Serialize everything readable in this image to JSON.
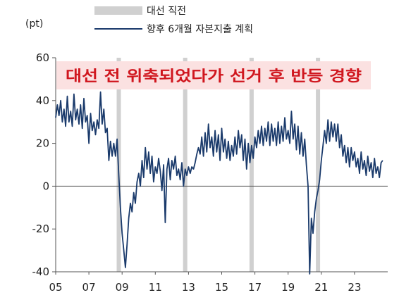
{
  "chart_data": {
    "type": "line",
    "unit_label": "(pt)",
    "legend": {
      "band_label": "대선 직전",
      "line_label": "향후 6개월 자본지출 계획"
    },
    "annotation": "대선 전 위축되었다가 선거 후 반등 경향",
    "x_range": [
      2005.0,
      2025.0
    ],
    "ylim": [
      -40,
      60
    ],
    "yticks": [
      60,
      40,
      20,
      0,
      -20,
      -40
    ],
    "xticks": [
      {
        "label": "05",
        "x": 2005
      },
      {
        "label": "07",
        "x": 2007
      },
      {
        "label": "09",
        "x": 2009
      },
      {
        "label": "11",
        "x": 2011
      },
      {
        "label": "13",
        "x": 2013
      },
      {
        "label": "15",
        "x": 2015
      },
      {
        "label": "17",
        "x": 2017
      },
      {
        "label": "19",
        "x": 2019
      },
      {
        "label": "21",
        "x": 2021
      },
      {
        "label": "23",
        "x": 2023
      }
    ],
    "election_bands": [
      2008.8,
      2012.8,
      2016.8,
      2020.8
    ],
    "series": [
      {
        "color": "#1a3a6b",
        "points": [
          [
            2005.0,
            32
          ],
          [
            2005.1,
            38
          ],
          [
            2005.2,
            33
          ],
          [
            2005.3,
            40
          ],
          [
            2005.4,
            30
          ],
          [
            2005.5,
            36
          ],
          [
            2005.6,
            28
          ],
          [
            2005.7,
            42
          ],
          [
            2005.8,
            30
          ],
          [
            2005.9,
            35
          ],
          [
            2006.0,
            28
          ],
          [
            2006.1,
            43
          ],
          [
            2006.2,
            31
          ],
          [
            2006.3,
            36
          ],
          [
            2006.4,
            29
          ],
          [
            2006.5,
            38
          ],
          [
            2006.6,
            27
          ],
          [
            2006.7,
            41
          ],
          [
            2006.8,
            30
          ],
          [
            2006.9,
            33
          ],
          [
            2007.0,
            20
          ],
          [
            2007.1,
            34
          ],
          [
            2007.2,
            26
          ],
          [
            2007.3,
            30
          ],
          [
            2007.4,
            24
          ],
          [
            2007.5,
            31
          ],
          [
            2007.6,
            27
          ],
          [
            2007.7,
            44
          ],
          [
            2007.8,
            29
          ],
          [
            2007.9,
            36
          ],
          [
            2008.0,
            25
          ],
          [
            2008.1,
            27
          ],
          [
            2008.2,
            12
          ],
          [
            2008.3,
            21
          ],
          [
            2008.4,
            14
          ],
          [
            2008.5,
            20
          ],
          [
            2008.6,
            14
          ],
          [
            2008.7,
            22
          ],
          [
            2008.8,
            5
          ],
          [
            2008.9,
            -10
          ],
          [
            2009.0,
            -22
          ],
          [
            2009.1,
            -30
          ],
          [
            2009.2,
            -38
          ],
          [
            2009.3,
            -27
          ],
          [
            2009.4,
            -15
          ],
          [
            2009.5,
            -8
          ],
          [
            2009.6,
            -12
          ],
          [
            2009.7,
            -3
          ],
          [
            2009.8,
            -8
          ],
          [
            2009.9,
            2
          ],
          [
            2010.0,
            6
          ],
          [
            2010.1,
            0
          ],
          [
            2010.2,
            12
          ],
          [
            2010.3,
            4
          ],
          [
            2010.4,
            18
          ],
          [
            2010.5,
            8
          ],
          [
            2010.6,
            16
          ],
          [
            2010.7,
            6
          ],
          [
            2010.8,
            14
          ],
          [
            2010.9,
            2
          ],
          [
            2011.0,
            9
          ],
          [
            2011.1,
            6
          ],
          [
            2011.2,
            13
          ],
          [
            2011.3,
            7
          ],
          [
            2011.4,
            -2
          ],
          [
            2011.5,
            10
          ],
          [
            2011.6,
            -17
          ],
          [
            2011.7,
            8
          ],
          [
            2011.8,
            13
          ],
          [
            2011.9,
            3
          ],
          [
            2012.0,
            12
          ],
          [
            2012.1,
            8
          ],
          [
            2012.2,
            14
          ],
          [
            2012.3,
            5
          ],
          [
            2012.4,
            8
          ],
          [
            2012.5,
            3
          ],
          [
            2012.6,
            11
          ],
          [
            2012.7,
            0
          ],
          [
            2012.8,
            8
          ],
          [
            2012.9,
            5
          ],
          [
            2013.0,
            9
          ],
          [
            2013.1,
            6
          ],
          [
            2013.2,
            9
          ],
          [
            2013.3,
            8
          ],
          [
            2013.4,
            11
          ],
          [
            2013.5,
            15
          ],
          [
            2013.6,
            18
          ],
          [
            2013.7,
            15
          ],
          [
            2013.8,
            23
          ],
          [
            2013.9,
            14
          ],
          [
            2014.0,
            25
          ],
          [
            2014.1,
            16
          ],
          [
            2014.2,
            29
          ],
          [
            2014.3,
            18
          ],
          [
            2014.4,
            23
          ],
          [
            2014.5,
            14
          ],
          [
            2014.6,
            26
          ],
          [
            2014.7,
            16
          ],
          [
            2014.8,
            24
          ],
          [
            2014.9,
            12
          ],
          [
            2015.0,
            27
          ],
          [
            2015.1,
            16
          ],
          [
            2015.2,
            22
          ],
          [
            2015.3,
            13
          ],
          [
            2015.4,
            21
          ],
          [
            2015.5,
            12
          ],
          [
            2015.6,
            19
          ],
          [
            2015.7,
            14
          ],
          [
            2015.8,
            23
          ],
          [
            2015.9,
            15
          ],
          [
            2016.0,
            26
          ],
          [
            2016.1,
            18
          ],
          [
            2016.2,
            24
          ],
          [
            2016.3,
            12
          ],
          [
            2016.4,
            22
          ],
          [
            2016.5,
            8
          ],
          [
            2016.6,
            20
          ],
          [
            2016.7,
            11
          ],
          [
            2016.8,
            19
          ],
          [
            2016.9,
            13
          ],
          [
            2017.0,
            23
          ],
          [
            2017.1,
            18
          ],
          [
            2017.2,
            26
          ],
          [
            2017.3,
            20
          ],
          [
            2017.4,
            28
          ],
          [
            2017.5,
            19
          ],
          [
            2017.6,
            27
          ],
          [
            2017.7,
            21
          ],
          [
            2017.8,
            30
          ],
          [
            2017.9,
            19
          ],
          [
            2018.0,
            29
          ],
          [
            2018.1,
            21
          ],
          [
            2018.2,
            27
          ],
          [
            2018.3,
            19
          ],
          [
            2018.4,
            30
          ],
          [
            2018.5,
            20
          ],
          [
            2018.6,
            28
          ],
          [
            2018.7,
            21
          ],
          [
            2018.8,
            32
          ],
          [
            2018.9,
            22
          ],
          [
            2019.0,
            26
          ],
          [
            2019.1,
            20
          ],
          [
            2019.2,
            35
          ],
          [
            2019.3,
            22
          ],
          [
            2019.4,
            29
          ],
          [
            2019.5,
            17
          ],
          [
            2019.6,
            28
          ],
          [
            2019.7,
            15
          ],
          [
            2019.8,
            25
          ],
          [
            2019.9,
            14
          ],
          [
            2020.0,
            22
          ],
          [
            2020.1,
            10
          ],
          [
            2020.2,
            0
          ],
          [
            2020.3,
            -41
          ],
          [
            2020.4,
            -15
          ],
          [
            2020.5,
            -22
          ],
          [
            2020.6,
            -12
          ],
          [
            2020.7,
            -6
          ],
          [
            2020.8,
            -2
          ],
          [
            2020.9,
            3
          ],
          [
            2021.0,
            12
          ],
          [
            2021.1,
            19
          ],
          [
            2021.2,
            26
          ],
          [
            2021.3,
            20
          ],
          [
            2021.4,
            31
          ],
          [
            2021.5,
            21
          ],
          [
            2021.6,
            30
          ],
          [
            2021.7,
            23
          ],
          [
            2021.8,
            29
          ],
          [
            2021.9,
            21
          ],
          [
            2022.0,
            29
          ],
          [
            2022.1,
            18
          ],
          [
            2022.2,
            24
          ],
          [
            2022.3,
            14
          ],
          [
            2022.4,
            19
          ],
          [
            2022.5,
            11
          ],
          [
            2022.6,
            18
          ],
          [
            2022.7,
            9
          ],
          [
            2022.8,
            18
          ],
          [
            2022.9,
            12
          ],
          [
            2023.0,
            16
          ],
          [
            2023.1,
            9
          ],
          [
            2023.2,
            13
          ],
          [
            2023.3,
            6
          ],
          [
            2023.4,
            16
          ],
          [
            2023.5,
            8
          ],
          [
            2023.6,
            12
          ],
          [
            2023.7,
            5
          ],
          [
            2023.8,
            14
          ],
          [
            2023.9,
            7
          ],
          [
            2024.0,
            11
          ],
          [
            2024.1,
            4
          ],
          [
            2024.2,
            13
          ],
          [
            2024.3,
            6
          ],
          [
            2024.4,
            9
          ],
          [
            2024.5,
            4
          ],
          [
            2024.6,
            11
          ],
          [
            2024.7,
            12
          ]
        ]
      }
    ]
  },
  "colors": {
    "line": "#1a3a6b",
    "band": "#d0d0d0",
    "axis": "#555555",
    "annotation_bg": "#fbe1e1",
    "annotation_text": "#d0161e"
  }
}
